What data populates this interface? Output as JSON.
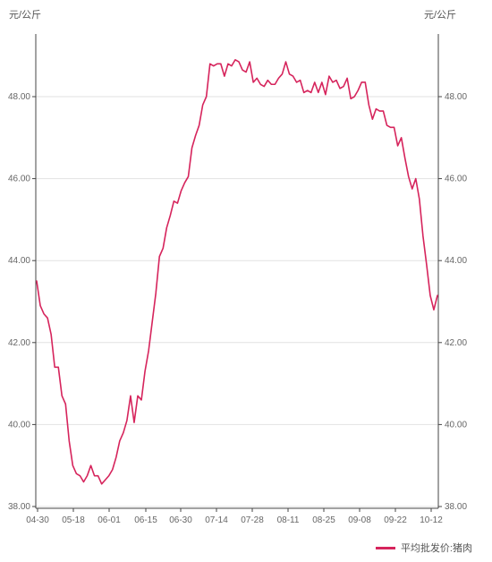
{
  "chart_data": {
    "type": "line",
    "units": {
      "left": "元/公斤",
      "right": "元/公斤"
    },
    "x_ticks": [
      "04-30",
      "05-18",
      "06-01",
      "06-15",
      "06-30",
      "07-14",
      "07-28",
      "08-11",
      "08-25",
      "09-08",
      "09-22",
      "10-12"
    ],
    "y_ticks": [
      "38.00",
      "40.00",
      "42.00",
      "44.00",
      "46.00",
      "48.00"
    ],
    "ylim": [
      38,
      49.5
    ],
    "grid": true,
    "legend_position": "bottom-right",
    "series": [
      {
        "name": "平均批发价:猪肉",
        "color": "#d6245c",
        "values": [
          43.5,
          42.9,
          42.7,
          42.6,
          42.2,
          41.4,
          41.4,
          40.7,
          40.5,
          39.6,
          39.0,
          38.8,
          38.75,
          38.6,
          38.75,
          39.0,
          38.75,
          38.75,
          38.55,
          38.65,
          38.75,
          38.9,
          39.2,
          39.6,
          39.8,
          40.1,
          40.7,
          40.05,
          40.7,
          40.6,
          41.3,
          41.8,
          42.5,
          43.2,
          44.1,
          44.3,
          44.8,
          45.1,
          45.45,
          45.4,
          45.7,
          45.9,
          46.05,
          46.75,
          47.05,
          47.3,
          47.8,
          48.0,
          48.8,
          48.75,
          48.8,
          48.8,
          48.5,
          48.8,
          48.75,
          48.9,
          48.85,
          48.65,
          48.6,
          48.85,
          48.35,
          48.45,
          48.3,
          48.25,
          48.4,
          48.3,
          48.3,
          48.45,
          48.55,
          48.85,
          48.55,
          48.5,
          48.35,
          48.4,
          48.1,
          48.15,
          48.1,
          48.35,
          48.1,
          48.35,
          48.05,
          48.5,
          48.35,
          48.4,
          48.2,
          48.25,
          48.45,
          47.95,
          48.0,
          48.15,
          48.35,
          48.35,
          47.8,
          47.45,
          47.7,
          47.65,
          47.65,
          47.3,
          47.25,
          47.25,
          46.8,
          47.0,
          46.5,
          46.05,
          45.75,
          46.0,
          45.5,
          44.6,
          43.9,
          43.15,
          42.8,
          43.15
        ]
      }
    ]
  }
}
